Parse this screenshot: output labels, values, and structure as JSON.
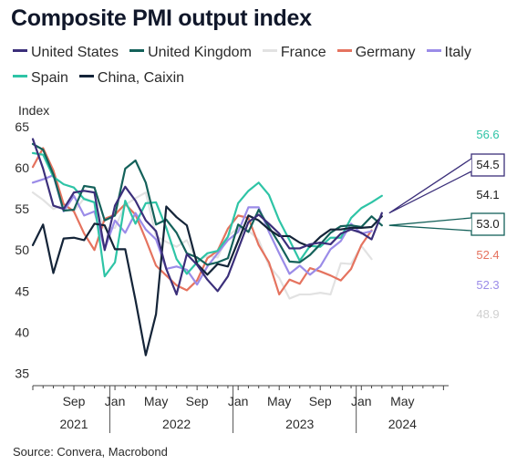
{
  "title": "Composite PMI output index",
  "source": "Source: Convera, Macrobond",
  "chart_data": {
    "type": "line",
    "ylabel": "Index",
    "ylim": [
      33.5,
      66
    ],
    "yticks": [
      35,
      40,
      45,
      50,
      55,
      60,
      65
    ],
    "xlim": [
      0,
      40.5
    ],
    "x_tick_labels": [
      {
        "x": 4,
        "label": "Sep"
      },
      {
        "x": 8,
        "label": "Jan"
      },
      {
        "x": 12,
        "label": "May"
      },
      {
        "x": 16,
        "label": "Sep"
      },
      {
        "x": 20,
        "label": "Jan"
      },
      {
        "x": 24,
        "label": "May"
      },
      {
        "x": 28,
        "label": "Sep"
      },
      {
        "x": 32,
        "label": "Jan"
      },
      {
        "x": 36,
        "label": "May"
      }
    ],
    "x_year_labels": [
      {
        "x": 4,
        "label": "2021"
      },
      {
        "x": 14,
        "label": "2022"
      },
      {
        "x": 26,
        "label": "2023"
      },
      {
        "x": 36,
        "label": "2024"
      }
    ],
    "x_start": "2021-05",
    "series": [
      {
        "name": "United States",
        "color": "#3b2f7a",
        "values": [
          63.5,
          59.9,
          55.4,
          55.0,
          57.0,
          57.2,
          57.0,
          50.0,
          55.4,
          57.7,
          56.0,
          53.6,
          52.3,
          47.7,
          44.6,
          49.5,
          48.2,
          46.4,
          45.0,
          46.8,
          50.1,
          53.4,
          54.3,
          53.2,
          52.0,
          50.2,
          50.2,
          50.7,
          50.9,
          50.7,
          52.0,
          52.5,
          52.1,
          51.3,
          54.5
        ]
      },
      {
        "name": "United Kingdom",
        "color": "#14615a",
        "values": [
          62.9,
          62.2,
          59.2,
          54.8,
          54.9,
          57.8,
          57.6,
          53.6,
          54.2,
          59.9,
          60.9,
          58.2,
          53.1,
          53.7,
          52.1,
          49.6,
          49.1,
          48.2,
          48.5,
          49.0,
          53.1,
          52.2,
          54.9,
          52.8,
          50.8,
          48.6,
          48.5,
          49.4,
          50.7,
          52.1,
          52.9,
          53.0,
          52.8,
          54.1,
          53.0
        ]
      },
      {
        "name": "France",
        "color": "#e2e2e2",
        "values": [
          57.0,
          56.1,
          55.0,
          55.5,
          54.7,
          56.3,
          55.8,
          52.6,
          52.7,
          55.5,
          56.3,
          57.0,
          51.7,
          51.0,
          50.4,
          51.2,
          48.7,
          49.3,
          49.1,
          51.7,
          52.7,
          52.4,
          51.2,
          48.1,
          46.6,
          44.1,
          44.6,
          44.6,
          44.8,
          44.6,
          48.4,
          48.3,
          50.5,
          48.9
        ]
      },
      {
        "name": "Germany",
        "color": "#e5735f",
        "values": [
          60.1,
          62.4,
          59.7,
          55.6,
          54.7,
          52.0,
          50.0,
          53.8,
          54.3,
          55.6,
          54.3,
          51.3,
          48.1,
          46.9,
          45.7,
          45.1,
          46.3,
          49.0,
          49.9,
          52.6,
          54.2,
          53.9,
          50.6,
          48.5,
          44.6,
          46.4,
          45.9,
          47.8,
          47.4,
          46.9,
          46.3,
          47.7,
          50.6,
          52.4
        ]
      },
      {
        "name": "Italy",
        "color": "#9b8ce8",
        "values": [
          58.2,
          58.6,
          59.1,
          54.7,
          56.6,
          54.2,
          54.7,
          50.1,
          53.6,
          52.1,
          54.5,
          52.5,
          51.3,
          47.7,
          48.0,
          47.6,
          45.8,
          48.0,
          49.6,
          51.2,
          52.2,
          55.2,
          55.2,
          52.2,
          49.6,
          47.1,
          48.1,
          47.0,
          48.0,
          50.1,
          51.1,
          53.2,
          52.0,
          52.3
        ]
      },
      {
        "name": "Spain",
        "color": "#2ec4a6",
        "values": [
          61.8,
          61.6,
          58.9,
          58.0,
          57.6,
          56.2,
          55.8,
          46.8,
          48.5,
          56.0,
          53.2,
          55.7,
          55.8,
          52.7,
          48.9,
          47.1,
          48.5,
          49.6,
          49.9,
          51.6,
          55.7,
          57.2,
          58.2,
          56.7,
          53.6,
          51.2,
          48.7,
          50.5,
          50.4,
          51.5,
          51.5,
          53.9,
          55.1,
          55.8,
          56.6
        ]
      },
      {
        "name": "China, Caixin",
        "color": "#142438",
        "values": [
          50.6,
          53.1,
          47.2,
          51.4,
          51.5,
          51.2,
          53.2,
          53.0,
          50.1,
          50.1,
          43.9,
          37.2,
          42.2,
          55.3,
          54.0,
          53.0,
          48.3,
          47.0,
          48.3,
          48.0,
          51.1,
          54.2,
          53.6,
          52.5,
          51.7,
          51.7,
          50.9,
          50.4,
          51.6,
          52.5,
          52.5,
          52.7,
          52.7,
          52.8,
          54.1
        ]
      }
    ],
    "end_labels": [
      {
        "text": "56.6",
        "value": 56.6,
        "color": "#2ec4a6",
        "boxed": false
      },
      {
        "text": "54.5",
        "value": 54.5,
        "color": "#3b2f7a",
        "boxed": true
      },
      {
        "text": "54.1",
        "value": 54.1,
        "color": "#142438",
        "boxed": false
      },
      {
        "text": "53.0",
        "value": 53.0,
        "color": "#14615a",
        "boxed": true
      },
      {
        "text": "52.4",
        "value": 52.4,
        "color": "#e5735f",
        "boxed": false
      },
      {
        "text": "52.3",
        "value": 52.3,
        "color": "#9b8ce8",
        "boxed": false
      },
      {
        "text": "48.9",
        "value": 48.9,
        "color": "#d0d0d0",
        "boxed": false
      }
    ],
    "grid": false,
    "legend_position": "top"
  }
}
